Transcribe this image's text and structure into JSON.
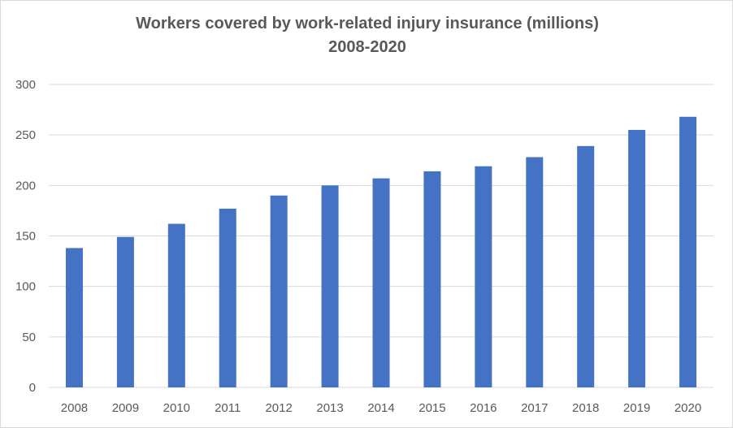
{
  "chart_data": {
    "type": "bar",
    "title": "Workers covered by work-related injury insurance (millions)",
    "subtitle": "2008-2020",
    "categories": [
      "2008",
      "2009",
      "2010",
      "2011",
      "2012",
      "2013",
      "2014",
      "2015",
      "2016",
      "2017",
      "2018",
      "2019",
      "2020"
    ],
    "values": [
      138,
      149,
      162,
      177,
      190,
      200,
      207,
      214,
      219,
      228,
      239,
      255,
      268
    ],
    "ylim": [
      0,
      300
    ],
    "yticks": [
      0,
      50,
      100,
      150,
      200,
      250,
      300
    ],
    "grid": true,
    "bar_color": "#4472c4",
    "grid_color": "#d9d9d9"
  }
}
